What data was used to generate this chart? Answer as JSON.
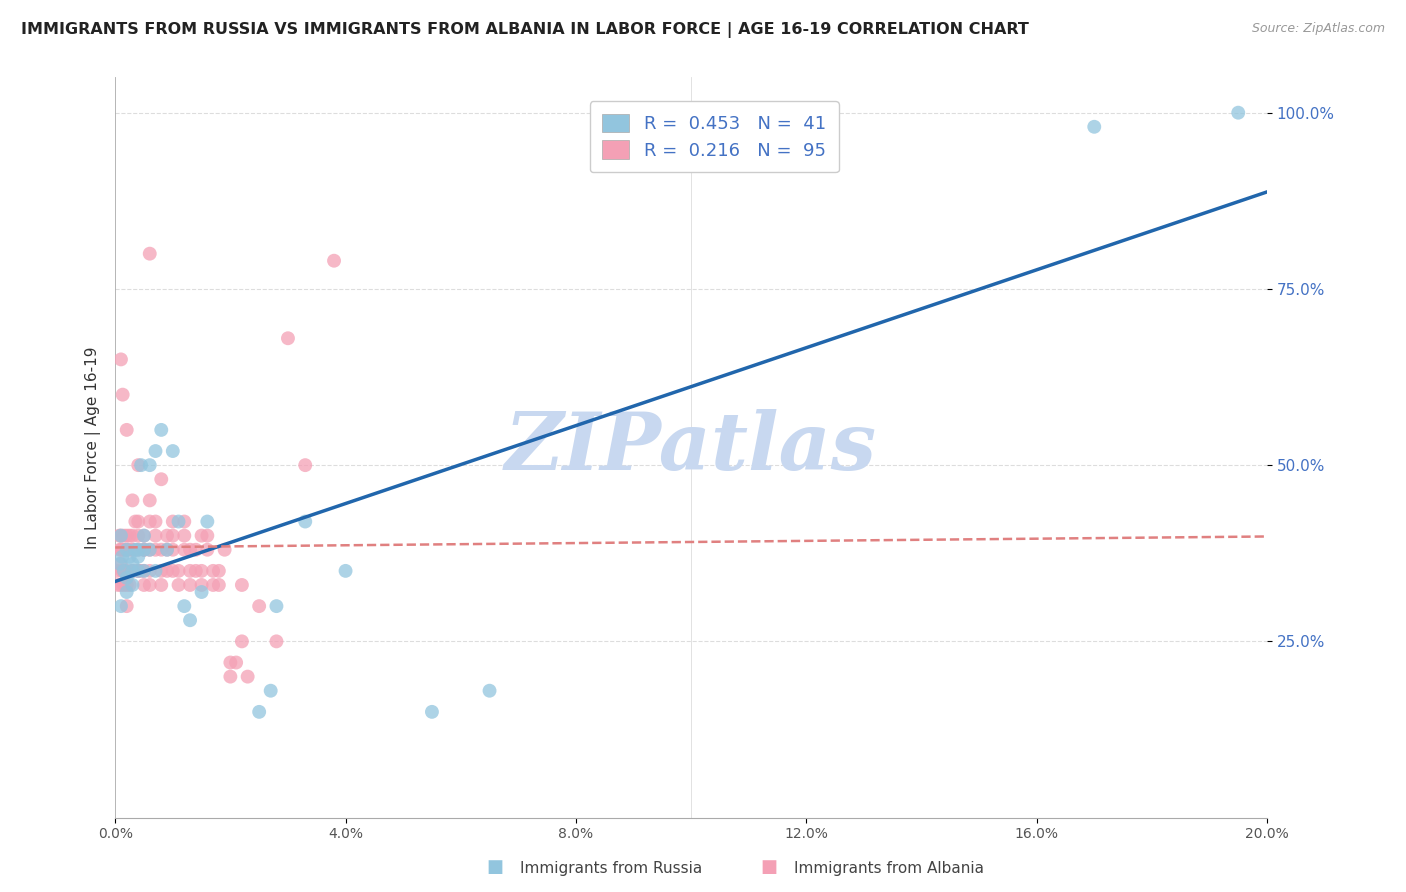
{
  "title": "IMMIGRANTS FROM RUSSIA VS IMMIGRANTS FROM ALBANIA IN LABOR FORCE | AGE 16-19 CORRELATION CHART",
  "source": "Source: ZipAtlas.com",
  "ylabel": "In Labor Force | Age 16-19",
  "legend_russia_R": "0.453",
  "legend_russia_N": "41",
  "legend_albania_R": "0.216",
  "legend_albania_N": "95",
  "color_russia": "#92c5de",
  "color_albania": "#f4a0b5",
  "trendline_russia_color": "#2166ac",
  "trendline_albania_color": "#e08080",
  "watermark_text": "ZIPatlas",
  "watermark_color": "#c8d8f0",
  "russia_x": [
    0.0008,
    0.001,
    0.001,
    0.0012,
    0.0015,
    0.002,
    0.002,
    0.002,
    0.0025,
    0.003,
    0.003,
    0.003,
    0.0035,
    0.004,
    0.004,
    0.004,
    0.0045,
    0.005,
    0.005,
    0.005,
    0.006,
    0.006,
    0.007,
    0.007,
    0.008,
    0.009,
    0.01,
    0.011,
    0.012,
    0.013,
    0.015,
    0.016,
    0.025,
    0.027,
    0.028,
    0.033,
    0.04,
    0.055,
    0.065,
    0.17,
    0.195
  ],
  "russia_y": [
    0.36,
    0.4,
    0.3,
    0.37,
    0.35,
    0.38,
    0.34,
    0.32,
    0.37,
    0.36,
    0.35,
    0.33,
    0.38,
    0.37,
    0.35,
    0.38,
    0.5,
    0.4,
    0.38,
    0.35,
    0.5,
    0.38,
    0.52,
    0.35,
    0.55,
    0.38,
    0.52,
    0.42,
    0.3,
    0.28,
    0.32,
    0.42,
    0.15,
    0.18,
    0.3,
    0.42,
    0.35,
    0.15,
    0.18,
    0.98,
    1.0
  ],
  "albania_x": [
    0.0003,
    0.0005,
    0.0007,
    0.0008,
    0.001,
    0.001,
    0.001,
    0.001,
    0.001,
    0.0012,
    0.0012,
    0.0013,
    0.0015,
    0.0015,
    0.0015,
    0.0015,
    0.002,
    0.002,
    0.002,
    0.002,
    0.002,
    0.002,
    0.0022,
    0.0025,
    0.0025,
    0.003,
    0.003,
    0.003,
    0.003,
    0.003,
    0.003,
    0.0035,
    0.004,
    0.004,
    0.004,
    0.004,
    0.004,
    0.004,
    0.0045,
    0.005,
    0.005,
    0.005,
    0.005,
    0.005,
    0.006,
    0.006,
    0.006,
    0.006,
    0.006,
    0.006,
    0.007,
    0.007,
    0.007,
    0.008,
    0.008,
    0.008,
    0.008,
    0.009,
    0.009,
    0.009,
    0.01,
    0.01,
    0.01,
    0.01,
    0.011,
    0.011,
    0.012,
    0.012,
    0.012,
    0.013,
    0.013,
    0.013,
    0.014,
    0.014,
    0.015,
    0.015,
    0.015,
    0.016,
    0.016,
    0.017,
    0.017,
    0.018,
    0.018,
    0.019,
    0.02,
    0.02,
    0.021,
    0.022,
    0.022,
    0.023,
    0.025,
    0.028,
    0.03,
    0.033,
    0.038
  ],
  "albania_y": [
    0.35,
    0.33,
    0.4,
    0.38,
    0.36,
    0.38,
    0.4,
    0.33,
    0.65,
    0.35,
    0.38,
    0.6,
    0.35,
    0.38,
    0.4,
    0.33,
    0.35,
    0.38,
    0.4,
    0.3,
    0.33,
    0.55,
    0.38,
    0.4,
    0.33,
    0.35,
    0.38,
    0.4,
    0.35,
    0.38,
    0.45,
    0.42,
    0.35,
    0.38,
    0.4,
    0.35,
    0.42,
    0.5,
    0.35,
    0.38,
    0.33,
    0.35,
    0.38,
    0.4,
    0.42,
    0.45,
    0.35,
    0.38,
    0.33,
    0.8,
    0.38,
    0.4,
    0.42,
    0.35,
    0.38,
    0.48,
    0.33,
    0.35,
    0.38,
    0.4,
    0.4,
    0.42,
    0.35,
    0.38,
    0.33,
    0.35,
    0.38,
    0.4,
    0.42,
    0.35,
    0.38,
    0.33,
    0.35,
    0.38,
    0.4,
    0.33,
    0.35,
    0.38,
    0.4,
    0.33,
    0.35,
    0.33,
    0.35,
    0.38,
    0.2,
    0.22,
    0.22,
    0.33,
    0.25,
    0.2,
    0.3,
    0.25,
    0.68,
    0.5,
    0.79
  ],
  "xlim": [
    0.0,
    0.2
  ],
  "ylim": [
    0.0,
    1.05
  ],
  "xticks": [
    0.0,
    0.04,
    0.08,
    0.12,
    0.16,
    0.2
  ],
  "xtick_labels": [
    "0.0%",
    "4.0%",
    "8.0%",
    "12.0%",
    "16.0%",
    "20.0%"
  ],
  "yticks": [
    0.25,
    0.5,
    0.75,
    1.0
  ],
  "ytick_labels": [
    "25.0%",
    "50.0%",
    "75.0%",
    "100.0%"
  ]
}
